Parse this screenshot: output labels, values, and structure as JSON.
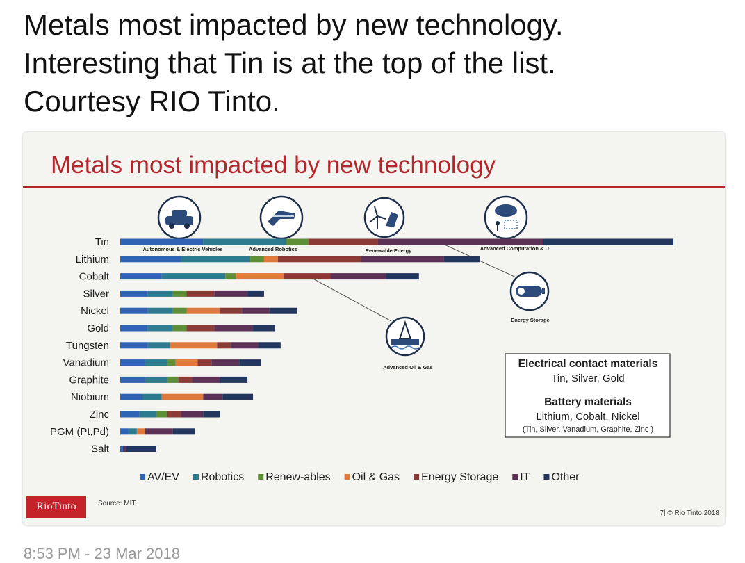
{
  "tweet": {
    "lines": [
      "Metals most impacted by new technology.",
      "Interesting that Tin is at the top of the list.",
      "Courtesy RIO Tinto."
    ],
    "timestamp": "8:53 PM - 23 Mar 2018"
  },
  "slide": {
    "title": "Metals most impacted by new technology",
    "logo": "RioTinto",
    "source": "Source: MIT",
    "footer": "7| © Rio Tinto 2018",
    "technology_icons": [
      {
        "label": "Autonomous & Electric Vehicles",
        "icon": "car-icon"
      },
      {
        "label": "Advanced Robotics",
        "icon": "robot-hand-icon"
      },
      {
        "label": "Renewable Energy",
        "icon": "wind-solar-icon"
      },
      {
        "label": "Advanced Computation & IT",
        "icon": "cloud-computing-icon"
      },
      {
        "label": "Energy Storage",
        "icon": "battery-icon"
      },
      {
        "label": "Advanced Oil & Gas",
        "icon": "oil-rig-icon"
      }
    ],
    "callout": {
      "heading1": "Electrical contact materials",
      "text1": "Tin, Silver, Gold",
      "heading2": "Battery materials",
      "text2": "Lithium, Cobalt, Nickel",
      "text3": "(Tin, Silver, Vanadium, Graphite, Zinc )"
    }
  },
  "chart_data": {
    "type": "bar",
    "orientation": "horizontal",
    "stacked": true,
    "title": "Metals most impacted by new technology",
    "categories": [
      "Tin",
      "Lithium",
      "Cobalt",
      "Silver",
      "Nickel",
      "Gold",
      "Tungsten",
      "Vanadium",
      "Graphite",
      "Niobium",
      "Zinc",
      "PGM (Pt,Pd)",
      "Salt"
    ],
    "series": [
      {
        "name": "AV/EV",
        "color": "#2f63b3",
        "values": [
          30,
          22,
          15,
          10,
          10,
          10,
          10,
          9,
          9,
          8,
          7,
          3,
          1
        ]
      },
      {
        "name": "Robotics",
        "color": "#2d7b8f",
        "values": [
          30,
          25,
          23,
          9,
          9,
          9,
          8,
          8,
          8,
          7,
          6,
          3,
          0
        ]
      },
      {
        "name": "Renew-ables",
        "color": "#5e8f37",
        "values": [
          8,
          5,
          4,
          5,
          5,
          5,
          0,
          3,
          4,
          0,
          4,
          0,
          0
        ]
      },
      {
        "name": "Oil & Gas",
        "color": "#e07a3c",
        "values": [
          0,
          5,
          17,
          0,
          12,
          0,
          17,
          8,
          0,
          15,
          0,
          3,
          0
        ]
      },
      {
        "name": "Energy Storage",
        "color": "#8c3a36",
        "values": [
          25,
          30,
          17,
          10,
          8,
          10,
          5,
          5,
          5,
          0,
          5,
          0,
          0
        ]
      },
      {
        "name": "IT",
        "color": "#5c3156",
        "values": [
          60,
          30,
          20,
          12,
          10,
          14,
          10,
          10,
          10,
          7,
          8,
          10,
          1
        ]
      },
      {
        "name": "Other",
        "color": "#23365e",
        "values": [
          47,
          13,
          12,
          6,
          10,
          8,
          8,
          8,
          10,
          11,
          6,
          8,
          11
        ]
      }
    ],
    "legend_position": "bottom"
  }
}
